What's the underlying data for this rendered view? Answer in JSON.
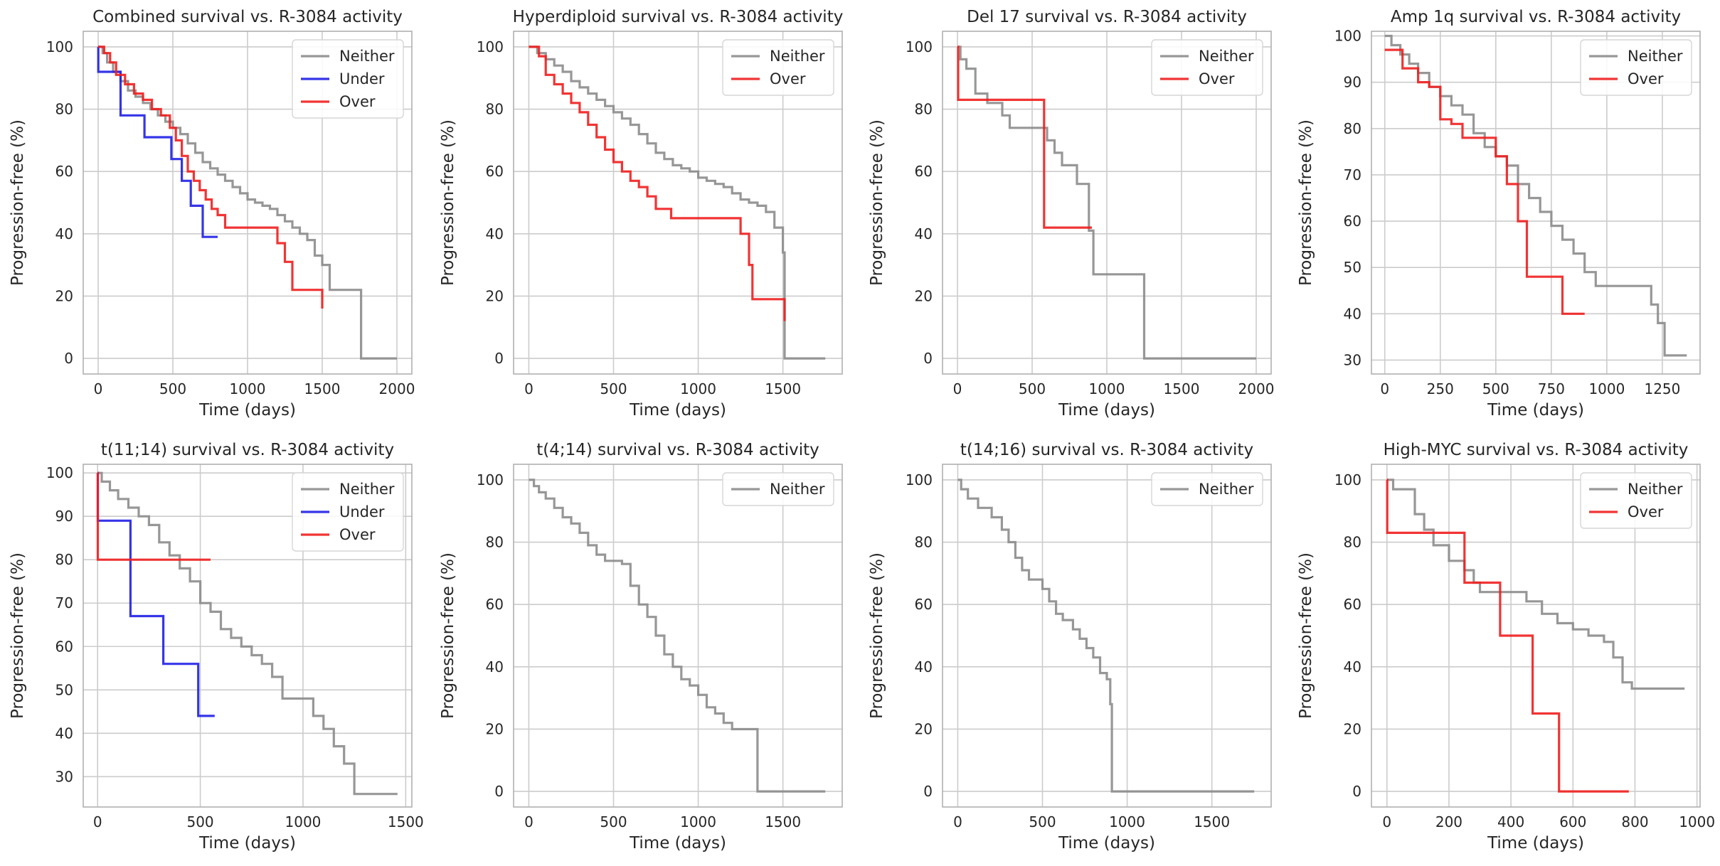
{
  "colors": {
    "Neither": "#8c8c8c",
    "Under": "#1f1fe6",
    "Over": "#f01e1e",
    "grid": "#cccccc",
    "spine": "#b0b0b0"
  },
  "chart_data": [
    {
      "type": "line",
      "title": "Combined survival vs. R-3084 activity",
      "xlabel": "Time (days)",
      "ylabel": "Progression-free (%)",
      "xlim": [
        -100,
        2100
      ],
      "ylim": [
        -5,
        105
      ],
      "xticks": [
        0,
        500,
        1000,
        1500,
        2000
      ],
      "yticks": [
        0,
        20,
        40,
        60,
        80,
        100
      ],
      "legend": [
        "Neither",
        "Under",
        "Over"
      ],
      "series": [
        {
          "name": "Neither",
          "x": [
            0,
            30,
            60,
            100,
            150,
            200,
            250,
            300,
            350,
            400,
            450,
            500,
            550,
            600,
            650,
            700,
            750,
            800,
            850,
            900,
            950,
            1000,
            1050,
            1100,
            1150,
            1200,
            1250,
            1300,
            1350,
            1400,
            1450,
            1500,
            1550,
            1600,
            1650,
            1700,
            1760,
            1760,
            2000
          ],
          "y": [
            100,
            98,
            95,
            92,
            89,
            86,
            84,
            82,
            80,
            78,
            76,
            74,
            72,
            69,
            66,
            63,
            61,
            59,
            57,
            55,
            53,
            51,
            50,
            49,
            48,
            46,
            44,
            42,
            40,
            38,
            33,
            30,
            22,
            22,
            22,
            22,
            22,
            0,
            0
          ]
        },
        {
          "name": "Under",
          "x": [
            0,
            1,
            150,
            150,
            310,
            310,
            490,
            490,
            560,
            560,
            620,
            620,
            700,
            700,
            800
          ],
          "y": [
            100,
            92,
            92,
            78,
            78,
            71,
            71,
            64,
            64,
            57,
            57,
            49,
            49,
            39,
            39
          ]
        },
        {
          "name": "Over",
          "x": [
            0,
            40,
            80,
            120,
            180,
            240,
            300,
            360,
            420,
            480,
            520,
            560,
            600,
            640,
            680,
            720,
            760,
            800,
            850,
            1000,
            1150,
            1200,
            1250,
            1300,
            1350,
            1400,
            1500,
            1500
          ],
          "y": [
            100,
            98,
            95,
            91,
            88,
            85,
            83,
            80,
            78,
            74,
            70,
            65,
            60,
            57,
            54,
            51,
            48,
            46,
            42,
            42,
            42,
            37,
            31,
            22,
            22,
            22,
            22,
            16
          ]
        }
      ]
    },
    {
      "type": "line",
      "title": "Hyperdiploid survival vs. R-3084 activity",
      "xlabel": "Time (days)",
      "ylabel": "Progression-free (%)",
      "xlim": [
        -90,
        1850
      ],
      "ylim": [
        -5,
        105
      ],
      "xticks": [
        0,
        500,
        1000,
        1500
      ],
      "yticks": [
        0,
        20,
        40,
        60,
        80,
        100
      ],
      "legend": [
        "Neither",
        "Over"
      ],
      "series": [
        {
          "name": "Neither",
          "x": [
            0,
            50,
            100,
            150,
            200,
            250,
            300,
            350,
            400,
            450,
            500,
            550,
            600,
            650,
            700,
            750,
            800,
            850,
            900,
            950,
            1000,
            1050,
            1100,
            1150,
            1200,
            1250,
            1300,
            1350,
            1400,
            1450,
            1500,
            1510,
            1510,
            1750
          ],
          "y": [
            100,
            98,
            96,
            94,
            92,
            89,
            87,
            85,
            83,
            81,
            79,
            77,
            75,
            72,
            69,
            66,
            64,
            62,
            61,
            60,
            58,
            57,
            56,
            55,
            53,
            51,
            50,
            49,
            47,
            42,
            34,
            34,
            0,
            0
          ]
        },
        {
          "name": "Over",
          "x": [
            0,
            60,
            100,
            150,
            200,
            250,
            300,
            350,
            400,
            450,
            500,
            550,
            600,
            650,
            700,
            750,
            840,
            1000,
            1200,
            1250,
            1300,
            1320,
            1350,
            1500,
            1510
          ],
          "y": [
            100,
            97,
            91,
            88,
            85,
            82,
            79,
            75,
            71,
            67,
            63,
            60,
            57,
            55,
            52,
            48,
            45,
            45,
            45,
            40,
            30,
            19,
            19,
            19,
            12
          ]
        }
      ]
    },
    {
      "type": "line",
      "title": "Del 17 survival vs. R-3084 activity",
      "xlabel": "Time (days)",
      "ylabel": "Progression-free (%)",
      "xlim": [
        -100,
        2100
      ],
      "ylim": [
        -5,
        105
      ],
      "xticks": [
        0,
        500,
        1000,
        1500,
        2000
      ],
      "yticks": [
        0,
        20,
        40,
        60,
        80,
        100
      ],
      "legend": [
        "Neither",
        "Over"
      ],
      "series": [
        {
          "name": "Neither",
          "x": [
            0,
            20,
            60,
            120,
            200,
            300,
            350,
            600,
            650,
            700,
            800,
            880,
            910,
            910,
            1250,
            1250,
            2000
          ],
          "y": [
            100,
            96,
            93,
            85,
            82,
            78,
            74,
            70,
            66,
            62,
            56,
            41,
            41,
            27,
            27,
            0,
            0
          ]
        },
        {
          "name": "Over",
          "x": [
            0,
            5,
            5,
            580,
            580,
            900
          ],
          "y": [
            100,
            100,
            83,
            83,
            42,
            42
          ]
        }
      ]
    },
    {
      "type": "line",
      "title": "Amp 1q survival vs. R-3084 activity",
      "xlabel": "Time (days)",
      "ylabel": "Progression-free (%)",
      "xlim": [
        -60,
        1420
      ],
      "ylim": [
        27,
        101
      ],
      "xticks": [
        0,
        250,
        500,
        750,
        1000,
        1250
      ],
      "yticks": [
        30,
        40,
        50,
        60,
        70,
        80,
        90,
        100
      ],
      "legend": [
        "Neither",
        "Over"
      ],
      "series": [
        {
          "name": "Neither",
          "x": [
            0,
            30,
            70,
            110,
            150,
            200,
            250,
            300,
            350,
            400,
            450,
            500,
            550,
            600,
            650,
            700,
            750,
            800,
            850,
            900,
            950,
            1000,
            1050,
            1100,
            1150,
            1200,
            1230,
            1250,
            1260,
            1260,
            1360
          ],
          "y": [
            100,
            98,
            96,
            94,
            92,
            89,
            87,
            85,
            83,
            79,
            76,
            74,
            72,
            68,
            65,
            62,
            59,
            56,
            53,
            49,
            46,
            46,
            46,
            46,
            46,
            42,
            38,
            38,
            31,
            31,
            31
          ]
        },
        {
          "name": "Over",
          "x": [
            0,
            80,
            100,
            150,
            200,
            250,
            300,
            350,
            400,
            450,
            500,
            550,
            600,
            640,
            700,
            800,
            900
          ],
          "y": [
            97,
            93,
            93,
            90,
            89,
            82,
            81,
            78,
            78,
            78,
            74,
            68,
            60,
            48,
            48,
            40,
            40
          ]
        }
      ]
    },
    {
      "type": "line",
      "title": "t(11;14) survival vs. R-3084 activity",
      "xlabel": "Time (days)",
      "ylabel": "Progression-free (%)",
      "xlim": [
        -70,
        1530
      ],
      "ylim": [
        23,
        102
      ],
      "xticks": [
        0,
        500,
        1000,
        1500
      ],
      "yticks": [
        30,
        40,
        50,
        60,
        70,
        80,
        90,
        100
      ],
      "legend": [
        "Neither",
        "Under",
        "Over"
      ],
      "series": [
        {
          "name": "Neither",
          "x": [
            0,
            20,
            60,
            100,
            150,
            200,
            250,
            300,
            350,
            400,
            450,
            500,
            550,
            600,
            650,
            700,
            750,
            800,
            850,
            900,
            950,
            1000,
            1050,
            1100,
            1150,
            1200,
            1250,
            1250,
            1460
          ],
          "y": [
            100,
            98,
            96,
            94,
            92,
            90,
            88,
            84,
            81,
            78,
            75,
            70,
            68,
            64,
            62,
            60,
            58,
            56,
            53,
            48,
            48,
            48,
            44,
            41,
            37,
            33,
            26,
            26,
            26
          ]
        },
        {
          "name": "Under",
          "x": [
            0,
            1,
            160,
            160,
            320,
            320,
            490,
            490,
            570
          ],
          "y": [
            100,
            89,
            89,
            67,
            67,
            56,
            56,
            44,
            44
          ]
        },
        {
          "name": "Over",
          "x": [
            0,
            1,
            550
          ],
          "y": [
            100,
            80,
            80
          ]
        }
      ]
    },
    {
      "type": "line",
      "title": "t(4;14) survival vs. R-3084 activity",
      "xlabel": "Time (days)",
      "ylabel": "Progression-free (%)",
      "xlim": [
        -90,
        1850
      ],
      "ylim": [
        -5,
        105
      ],
      "xticks": [
        0,
        500,
        1000,
        1500
      ],
      "yticks": [
        0,
        20,
        40,
        60,
        80,
        100
      ],
      "legend": [
        "Neither"
      ],
      "series": [
        {
          "name": "Neither",
          "x": [
            0,
            30,
            60,
            100,
            150,
            200,
            250,
            300,
            350,
            400,
            450,
            500,
            550,
            600,
            650,
            700,
            750,
            800,
            850,
            900,
            950,
            1000,
            1050,
            1100,
            1150,
            1200,
            1250,
            1300,
            1350,
            1350,
            1750
          ],
          "y": [
            100,
            98,
            96,
            94,
            91,
            88,
            86,
            83,
            79,
            76,
            74,
            74,
            73,
            66,
            60,
            56,
            50,
            44,
            40,
            36,
            34,
            31,
            27,
            25,
            22,
            20,
            20,
            20,
            20,
            0,
            0
          ]
        }
      ]
    },
    {
      "type": "line",
      "title": "t(14;16) survival vs. R-3084 activity",
      "xlabel": "Time (days)",
      "ylabel": "Progression-free (%)",
      "xlim": [
        -90,
        1850
      ],
      "ylim": [
        -5,
        105
      ],
      "xticks": [
        0,
        500,
        1000,
        1500
      ],
      "yticks": [
        0,
        20,
        40,
        60,
        80,
        100
      ],
      "legend": [
        "Neither"
      ],
      "series": [
        {
          "name": "Neither",
          "x": [
            0,
            20,
            60,
            120,
            200,
            260,
            300,
            340,
            380,
            420,
            460,
            500,
            540,
            580,
            620,
            680,
            720,
            760,
            800,
            840,
            880,
            900,
            910,
            910,
            1750
          ],
          "y": [
            100,
            97,
            94,
            91,
            88,
            84,
            80,
            75,
            71,
            68,
            68,
            65,
            61,
            57,
            55,
            52,
            49,
            46,
            43,
            38,
            36,
            28,
            24,
            0,
            0
          ]
        }
      ]
    },
    {
      "type": "line",
      "title": "High-MYC survival vs. R-3084 activity",
      "xlabel": "Time (days)",
      "ylabel": "Progression-free (%)",
      "xlim": [
        -50,
        1010
      ],
      "ylim": [
        -5,
        105
      ],
      "xticks": [
        0,
        200,
        400,
        600,
        800,
        1000
      ],
      "yticks": [
        0,
        20,
        40,
        60,
        80,
        100
      ],
      "legend": [
        "Neither",
        "Over"
      ],
      "series": [
        {
          "name": "Neither",
          "x": [
            0,
            20,
            90,
            120,
            150,
            200,
            250,
            280,
            300,
            450,
            500,
            550,
            600,
            650,
            700,
            730,
            760,
            790,
            850,
            960
          ],
          "y": [
            100,
            97,
            89,
            84,
            79,
            74,
            71,
            67,
            64,
            61,
            57,
            54,
            52,
            50,
            48,
            43,
            35,
            33,
            33,
            33
          ]
        },
        {
          "name": "Over",
          "x": [
            0,
            1,
            250,
            250,
            365,
            365,
            470,
            470,
            555,
            555,
            780
          ],
          "y": [
            100,
            83,
            83,
            67,
            67,
            50,
            50,
            25,
            25,
            0,
            0
          ]
        }
      ]
    }
  ]
}
